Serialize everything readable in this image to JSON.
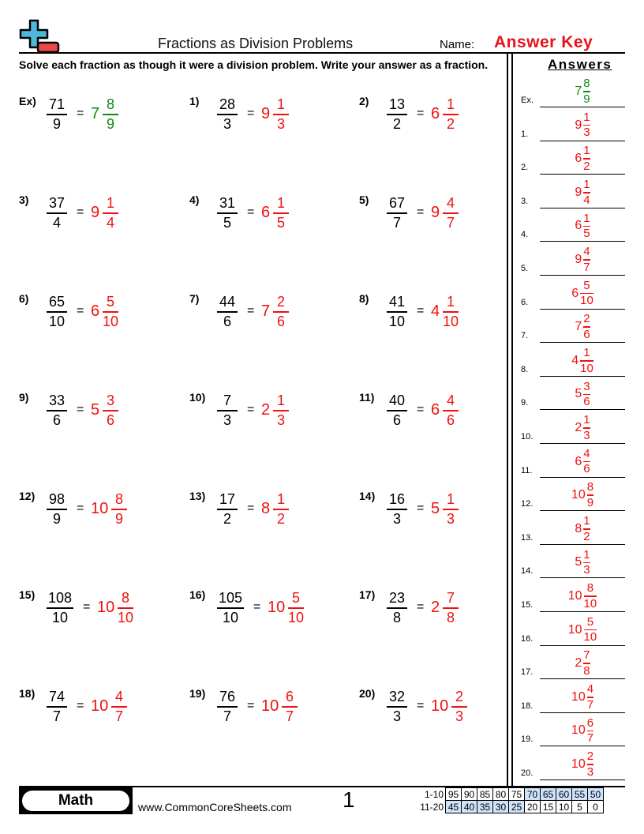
{
  "header": {
    "title": "Fractions as Division Problems",
    "name_label": "Name:",
    "name_value": "Answer Key"
  },
  "instructions": "Solve each fraction as though it were a division problem. Write your answer as a fraction.",
  "answers_heading": "Answers",
  "colors": {
    "answer": "#f01010",
    "example": "#128a12",
    "score_highlight": "#cfe2fa"
  },
  "problems": [
    {
      "label": "Ex)",
      "num": "71",
      "den": "9",
      "whole": "7",
      "an": "8",
      "ad": "9",
      "example": true
    },
    {
      "label": "1)",
      "num": "28",
      "den": "3",
      "whole": "9",
      "an": "1",
      "ad": "3"
    },
    {
      "label": "2)",
      "num": "13",
      "den": "2",
      "whole": "6",
      "an": "1",
      "ad": "2"
    },
    {
      "label": "3)",
      "num": "37",
      "den": "4",
      "whole": "9",
      "an": "1",
      "ad": "4"
    },
    {
      "label": "4)",
      "num": "31",
      "den": "5",
      "whole": "6",
      "an": "1",
      "ad": "5"
    },
    {
      "label": "5)",
      "num": "67",
      "den": "7",
      "whole": "9",
      "an": "4",
      "ad": "7"
    },
    {
      "label": "6)",
      "num": "65",
      "den": "10",
      "whole": "6",
      "an": "5",
      "ad": "10"
    },
    {
      "label": "7)",
      "num": "44",
      "den": "6",
      "whole": "7",
      "an": "2",
      "ad": "6"
    },
    {
      "label": "8)",
      "num": "41",
      "den": "10",
      "whole": "4",
      "an": "1",
      "ad": "10"
    },
    {
      "label": "9)",
      "num": "33",
      "den": "6",
      "whole": "5",
      "an": "3",
      "ad": "6"
    },
    {
      "label": "10)",
      "num": "7",
      "den": "3",
      "whole": "2",
      "an": "1",
      "ad": "3"
    },
    {
      "label": "11)",
      "num": "40",
      "den": "6",
      "whole": "6",
      "an": "4",
      "ad": "6"
    },
    {
      "label": "12)",
      "num": "98",
      "den": "9",
      "whole": "10",
      "an": "8",
      "ad": "9"
    },
    {
      "label": "13)",
      "num": "17",
      "den": "2",
      "whole": "8",
      "an": "1",
      "ad": "2"
    },
    {
      "label": "14)",
      "num": "16",
      "den": "3",
      "whole": "5",
      "an": "1",
      "ad": "3"
    },
    {
      "label": "15)",
      "num": "108",
      "den": "10",
      "whole": "10",
      "an": "8",
      "ad": "10"
    },
    {
      "label": "16)",
      "num": "105",
      "den": "10",
      "whole": "10",
      "an": "5",
      "ad": "10"
    },
    {
      "label": "17)",
      "num": "23",
      "den": "8",
      "whole": "2",
      "an": "7",
      "ad": "8"
    },
    {
      "label": "18)",
      "num": "74",
      "den": "7",
      "whole": "10",
      "an": "4",
      "ad": "7"
    },
    {
      "label": "19)",
      "num": "76",
      "den": "7",
      "whole": "10",
      "an": "6",
      "ad": "7"
    },
    {
      "label": "20)",
      "num": "32",
      "den": "3",
      "whole": "10",
      "an": "2",
      "ad": "3"
    }
  ],
  "answer_labels": [
    "Ex.",
    "1.",
    "2.",
    "3.",
    "4.",
    "5.",
    "6.",
    "7.",
    "8.",
    "9.",
    "10.",
    "11.",
    "12.",
    "13.",
    "14.",
    "15.",
    "16.",
    "17.",
    "18.",
    "19.",
    "20."
  ],
  "equals": "=",
  "footer": {
    "subject": "Math",
    "site": "www.CommonCoreSheets.com",
    "page": "1",
    "score_rows": [
      {
        "label": "1-10",
        "values": [
          "95",
          "90",
          "85",
          "80",
          "75",
          "70",
          "65",
          "60",
          "55",
          "50"
        ],
        "highlighted": [
          5,
          6,
          7,
          8,
          9
        ]
      },
      {
        "label": "11-20",
        "values": [
          "45",
          "40",
          "35",
          "30",
          "25",
          "20",
          "15",
          "10",
          "5",
          "0"
        ],
        "highlighted": [
          0,
          1,
          2,
          3,
          4
        ]
      }
    ]
  }
}
